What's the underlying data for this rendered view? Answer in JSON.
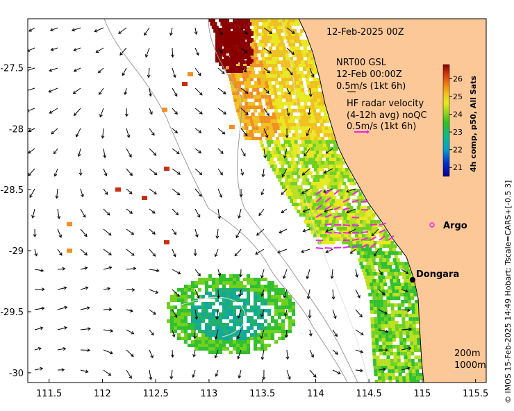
{
  "map": {
    "title": "12-Feb-2025 00Z",
    "gsl_legend": {
      "line1": "NRT00 GSL",
      "line2": "12-Feb 00:00Z",
      "line3": "0.5m/s (1kt 6h)"
    },
    "radar_legend": {
      "line1": "HF radar velocity",
      "line2": "(4-12h avg) noQC",
      "line3": "0.5m/s (1kt 6h)"
    },
    "places": [
      {
        "name": "Argo",
        "lon": 115.05,
        "lat": -28.85,
        "marker": "magenta-circle"
      },
      {
        "name": "Dongara",
        "lon": 114.93,
        "lat": -29.25,
        "marker": "black-dot"
      }
    ],
    "depth_labels": [
      "200m",
      "1000m"
    ],
    "credit": "© IMOS 15-Feb-2025 14:49 Hobart; Tscale=CARS+[-0.5 3]",
    "colors": {
      "land": "#fcc898",
      "magenta": "#ee22ee",
      "coast": "#000000"
    }
  },
  "chart_data": {
    "type": "map",
    "x_axis": {
      "ticks": [
        "111.5",
        "112",
        "112.5",
        "113",
        "113.5",
        "114",
        "114.5",
        "115",
        "115.5"
      ],
      "range": [
        111.3,
        115.6
      ]
    },
    "y_axis": {
      "ticks": [
        "-27.5",
        "-28",
        "-28.5",
        "-29",
        "-29.5",
        "-30"
      ],
      "range": [
        -30.08,
        -27.1
      ]
    },
    "colorbar": {
      "label": "4h comp, p50, All Sats",
      "ticks": [
        "21",
        "22",
        "23",
        "24",
        "25",
        "26"
      ],
      "range": [
        20.5,
        26.8
      ]
    }
  }
}
